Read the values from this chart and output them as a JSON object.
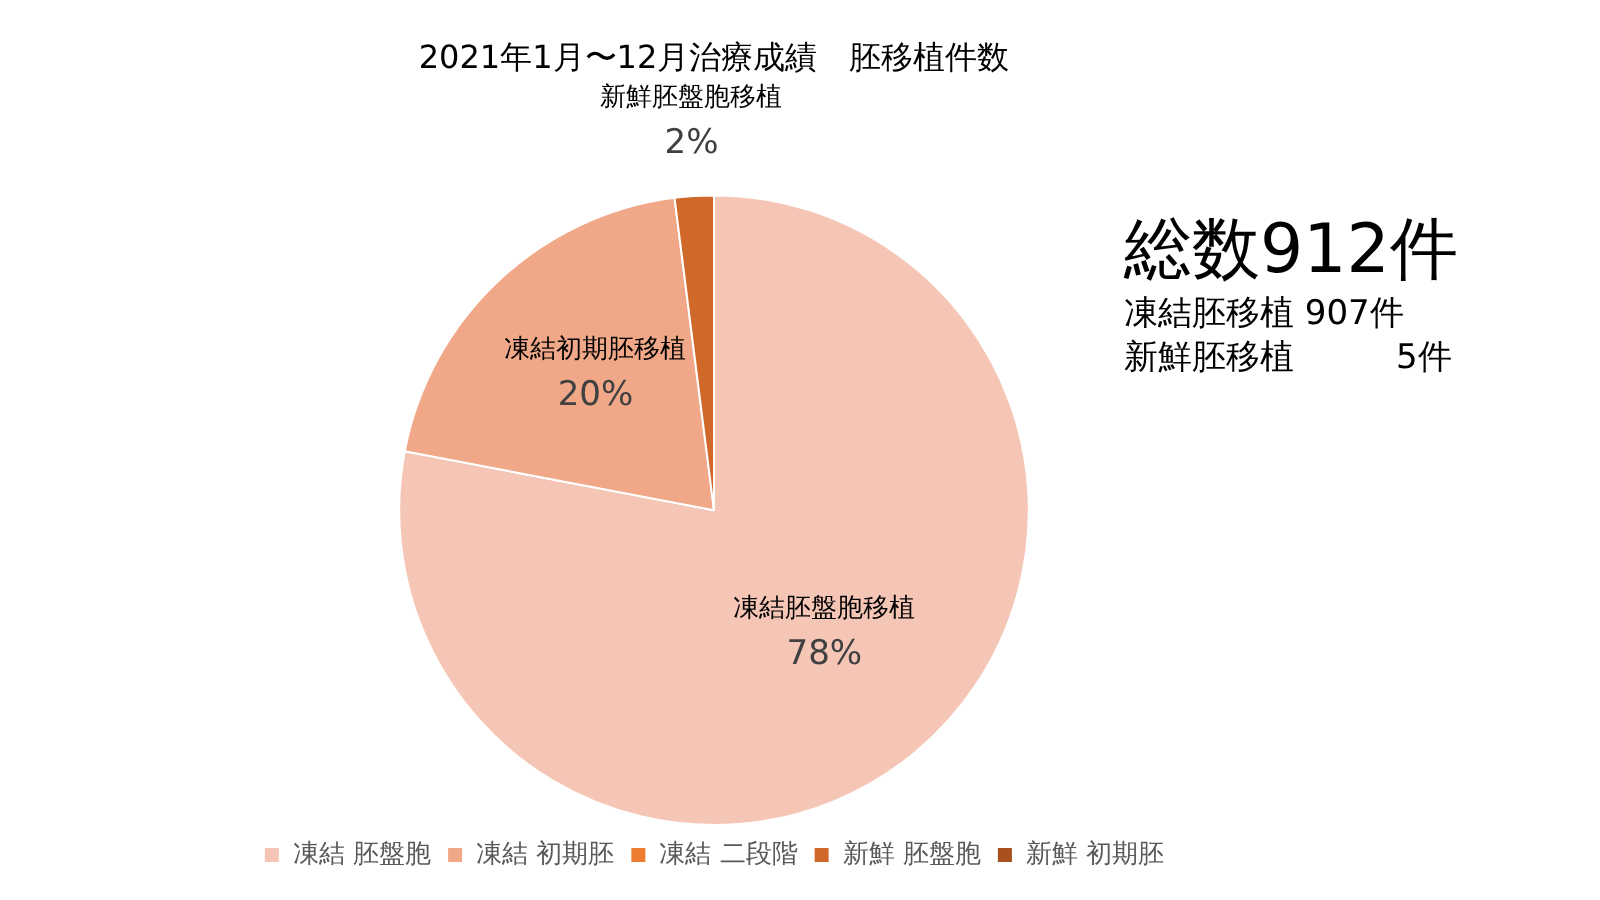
{
  "chart_data": {
    "type": "pie",
    "title": "2021年1月〜12月治療成績　胚移植件数",
    "categories": [
      "凍結 胚盤胞",
      "凍結 初期胚",
      "凍結 二段階",
      "新鮮 胚盤胞",
      "新鮮 初期胚"
    ],
    "values": [
      78,
      20,
      0,
      2,
      0
    ],
    "colors": [
      "#f5c6b6",
      "#f0a888",
      "#ec7c30",
      "#d0682a",
      "#a8501e"
    ],
    "value_labels": [
      "78%",
      "20%",
      null,
      "2%",
      null
    ],
    "legend": "bottom",
    "annotations": [
      {
        "text": "凍結胚盤胞移植",
        "x": "凍結 胚盤胞"
      },
      {
        "text": "凍結初期胚移植",
        "x": "凍結 初期胚"
      },
      {
        "text": "新鮮胚盤胞移植",
        "x": "新鮮 胚盤胞"
      },
      "総数912件",
      "凍結胚移植 907件",
      "新鮮胚移植　　　5件"
    ]
  }
}
